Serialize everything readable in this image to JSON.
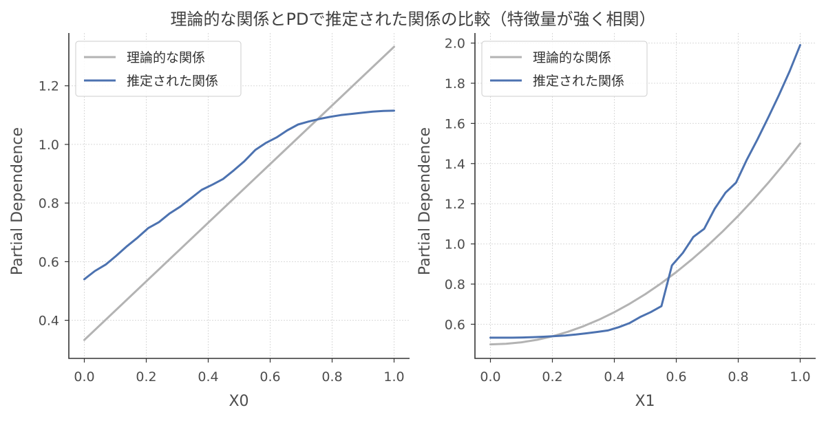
{
  "suptitle": "理論的な関係とPDで推定された関係の比較（特徴量が強く相関）",
  "colors": {
    "theoretical": "#b3b3b3",
    "estimated": "#4c72b0"
  },
  "chart_data": [
    {
      "type": "line",
      "xlabel": "X0",
      "ylabel": "Partial Dependence",
      "xlim": [
        -0.05,
        1.05
      ],
      "ylim": [
        0.27,
        1.38
      ],
      "xticks": [
        0.0,
        0.2,
        0.4,
        0.6,
        0.8,
        1.0
      ],
      "xtick_labels": [
        "0.0",
        "0.2",
        "0.4",
        "0.6",
        "0.8",
        "1.0"
      ],
      "yticks": [
        0.4,
        0.6,
        0.8,
        1.0,
        1.2
      ],
      "ytick_labels": [
        "0.4",
        "0.6",
        "0.8",
        "1.0",
        "1.2"
      ],
      "grid": true,
      "legend": "top-left",
      "series": [
        {
          "name": "理論的な関係",
          "color": "#b3b3b3",
          "x": [
            0.0,
            1.0
          ],
          "y": [
            0.333,
            1.333
          ]
        },
        {
          "name": "推定された関係",
          "color": "#4c72b0",
          "x": [
            0.0,
            0.034,
            0.069,
            0.103,
            0.138,
            0.172,
            0.207,
            0.241,
            0.276,
            0.31,
            0.345,
            0.379,
            0.414,
            0.448,
            0.483,
            0.517,
            0.552,
            0.586,
            0.621,
            0.655,
            0.69,
            0.724,
            0.759,
            0.793,
            0.828,
            0.862,
            0.897,
            0.931,
            0.966,
            1.0
          ],
          "y": [
            0.54,
            0.568,
            0.59,
            0.62,
            0.653,
            0.682,
            0.715,
            0.735,
            0.765,
            0.788,
            0.817,
            0.845,
            0.863,
            0.882,
            0.912,
            0.943,
            0.981,
            1.005,
            1.024,
            1.048,
            1.068,
            1.078,
            1.087,
            1.094,
            1.1,
            1.104,
            1.108,
            1.112,
            1.114,
            1.115
          ]
        }
      ]
    },
    {
      "type": "line",
      "xlabel": "X1",
      "ylabel": "Partial Dependence",
      "xlim": [
        -0.05,
        1.05
      ],
      "ylim": [
        0.43,
        2.05
      ],
      "xticks": [
        0.0,
        0.2,
        0.4,
        0.6,
        0.8,
        1.0
      ],
      "xtick_labels": [
        "0.0",
        "0.2",
        "0.4",
        "0.6",
        "0.8",
        "1.0"
      ],
      "yticks": [
        0.6,
        0.8,
        1.0,
        1.2,
        1.4,
        1.6,
        1.8,
        2.0
      ],
      "ytick_labels": [
        "0.6",
        "0.8",
        "1.0",
        "1.2",
        "1.4",
        "1.6",
        "1.8",
        "2.0"
      ],
      "grid": true,
      "legend": "top-left",
      "series": [
        {
          "name": "理論的な関係",
          "color": "#b3b3b3",
          "x": [
            0.0,
            0.05,
            0.1,
            0.15,
            0.2,
            0.25,
            0.3,
            0.35,
            0.4,
            0.45,
            0.5,
            0.55,
            0.6,
            0.65,
            0.7,
            0.75,
            0.8,
            0.85,
            0.9,
            0.95,
            1.0
          ],
          "y": [
            0.5,
            0.5025,
            0.51,
            0.5225,
            0.54,
            0.5625,
            0.59,
            0.6225,
            0.66,
            0.7025,
            0.75,
            0.8025,
            0.86,
            0.9225,
            0.99,
            1.0625,
            1.14,
            1.2225,
            1.31,
            1.4025,
            1.5
          ]
        },
        {
          "name": "推定された関係",
          "color": "#4c72b0",
          "x": [
            0.0,
            0.034,
            0.069,
            0.103,
            0.138,
            0.172,
            0.207,
            0.241,
            0.276,
            0.31,
            0.345,
            0.379,
            0.414,
            0.448,
            0.483,
            0.517,
            0.552,
            0.586,
            0.621,
            0.655,
            0.69,
            0.724,
            0.759,
            0.793,
            0.828,
            0.862,
            0.897,
            0.931,
            0.966,
            1.0
          ],
          "y": [
            0.533,
            0.533,
            0.533,
            0.534,
            0.536,
            0.538,
            0.541,
            0.544,
            0.549,
            0.555,
            0.562,
            0.569,
            0.585,
            0.605,
            0.636,
            0.66,
            0.69,
            0.893,
            0.955,
            1.035,
            1.075,
            1.175,
            1.255,
            1.305,
            1.42,
            1.52,
            1.63,
            1.74,
            1.86,
            1.99
          ]
        }
      ]
    }
  ]
}
